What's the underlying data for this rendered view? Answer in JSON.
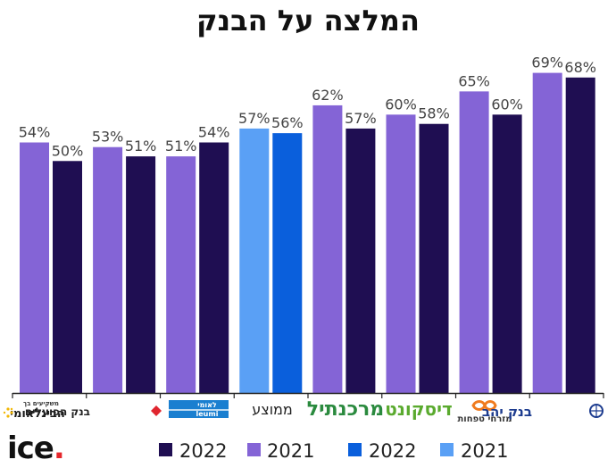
{
  "title": "המלצה על הבנק",
  "brand": {
    "name": "ice",
    "dot": "."
  },
  "colors": {
    "series_2021": "#8464d6",
    "series_2022": "#1f0e52",
    "avg_2021": "#5aa0f5",
    "avg_2022": "#0a5fdc",
    "axis": "#222222"
  },
  "chart_data": {
    "type": "bar",
    "title": "המלצה על הבנק",
    "categories": [
      "הבינלאומי",
      "בנק הפועלים",
      "לאומי",
      "ממוצע",
      "מרכנתיל",
      "דיסקונט",
      "מזרחי טפחות",
      "בנק יהב"
    ],
    "category_label_text": {
      "intl_small": "משקיעים בך",
      "intl_main": "הבינלאומי",
      "hapoalim": "בנק הפועלים",
      "leumi_he": "לאומי",
      "leumi_en": "leumi",
      "average": "ממוצע",
      "mercantile": "מרכנתיל",
      "discount": "דיסקונט",
      "mizrahi": "מזרחי טפחות",
      "yahav": "בנק יהב"
    },
    "series": [
      {
        "name": "2021",
        "values": [
          54,
          53,
          51,
          57,
          62,
          60,
          65,
          69
        ]
      },
      {
        "name": "2022",
        "values": [
          50,
          51,
          54,
          56,
          57,
          58,
          60,
          68
        ]
      }
    ],
    "value_labels": [
      [
        "54%",
        "53%",
        "51%",
        "57%",
        "62%",
        "60%",
        "65%",
        "69%"
      ],
      [
        "50%",
        "51%",
        "54%",
        "56%",
        "57%",
        "58%",
        "60%",
        "68%"
      ]
    ],
    "average_category_index": 3,
    "legend": [
      {
        "label": "2022",
        "color": "#1f0e52"
      },
      {
        "label": "2021",
        "color": "#8464d6"
      },
      {
        "label": "2022",
        "color": "#0a5fdc"
      },
      {
        "label": "2021",
        "color": "#5aa0f5"
      }
    ],
    "legend_position": "bottom",
    "ylim": [
      0,
      72
    ],
    "grid": false,
    "xlabel": "",
    "ylabel": ""
  }
}
